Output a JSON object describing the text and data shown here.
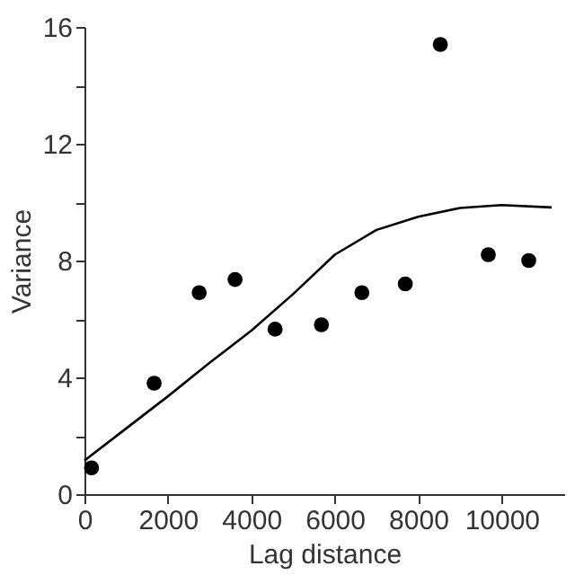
{
  "chart_data": {
    "type": "scatter",
    "xlabel": "Lag distance",
    "ylabel": "Variance",
    "xlim": [
      0,
      11500
    ],
    "xticks": [
      0,
      2000,
      4000,
      6000,
      8000,
      10000
    ],
    "ylim": [
      0,
      16
    ],
    "yticks": [
      0,
      {
        "value": 2,
        "label": null
      },
      4,
      {
        "value": 6,
        "label": null
      },
      8,
      {
        "value": 10,
        "label": null
      },
      12,
      {
        "value": 14,
        "label": null
      },
      16
    ],
    "grid": false,
    "marker": "circle",
    "series": [
      {
        "color": "#000000",
        "x": [
          170,
          1670,
          2750,
          3610,
          4570,
          5680,
          6650,
          7690,
          8530,
          9680,
          10650
        ],
        "values": [
          0.9,
          3.8,
          6.9,
          7.35,
          5.65,
          5.8,
          6.9,
          7.2,
          15.4,
          8.2,
          8.0
        ]
      },
      {
        "type": "line",
        "color": "#000000",
        "line_style": "solid",
        "marker": "none",
        "x": [
          0,
          1000,
          2000,
          3000,
          4000,
          5000,
          6000,
          7000,
          8000,
          9000,
          10000,
          11200
        ],
        "values": [
          1.15,
          2.25,
          3.35,
          4.5,
          5.6,
          6.85,
          8.2,
          9.05,
          9.5,
          9.8,
          9.9,
          9.82
        ]
      }
    ]
  }
}
